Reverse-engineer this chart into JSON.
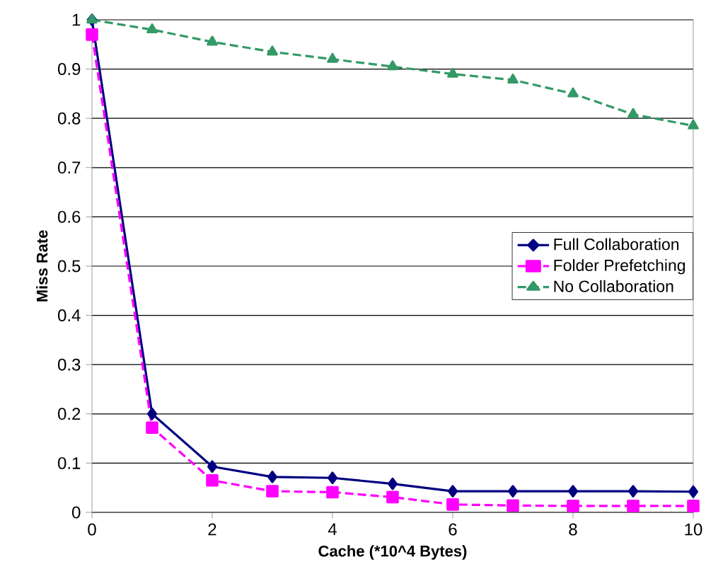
{
  "chart_data": {
    "type": "line",
    "xlabel": "Cache (*10^4 Bytes)",
    "ylabel": "Miss Rate",
    "x": [
      0,
      1,
      2,
      3,
      4,
      5,
      6,
      7,
      8,
      9,
      10
    ],
    "series": [
      {
        "name": "Full Collaboration",
        "color": "#000080",
        "marker": "diamond",
        "line_style": "solid",
        "values": [
          1,
          0.2,
          0.093,
          0.072,
          0.07,
          0.058,
          0.043,
          0.043,
          0.043,
          0.043,
          0.042
        ]
      },
      {
        "name": "Folder Prefetching",
        "color": "#ff00ff",
        "marker": "square",
        "line_style": "dashed",
        "values": [
          0.97,
          0.172,
          0.065,
          0.043,
          0.041,
          0.031,
          0.016,
          0.014,
          0.013,
          0.013,
          0.013
        ]
      },
      {
        "name": "No Collaboration",
        "color": "#339966",
        "marker": "triangle",
        "line_style": "dashed",
        "values": [
          1,
          0.98,
          0.955,
          0.935,
          0.92,
          0.905,
          0.89,
          0.878,
          0.85,
          0.808,
          0.785
        ]
      }
    ],
    "xlim": [
      0,
      10
    ],
    "xticks": [
      0,
      2,
      4,
      6,
      8,
      10
    ],
    "ylim": [
      0,
      1
    ],
    "yticks": [
      0,
      0.1,
      0.2,
      0.3,
      0.4,
      0.5,
      0.6,
      0.7,
      0.8,
      0.9,
      1
    ],
    "grid": "y",
    "legend": "right"
  }
}
